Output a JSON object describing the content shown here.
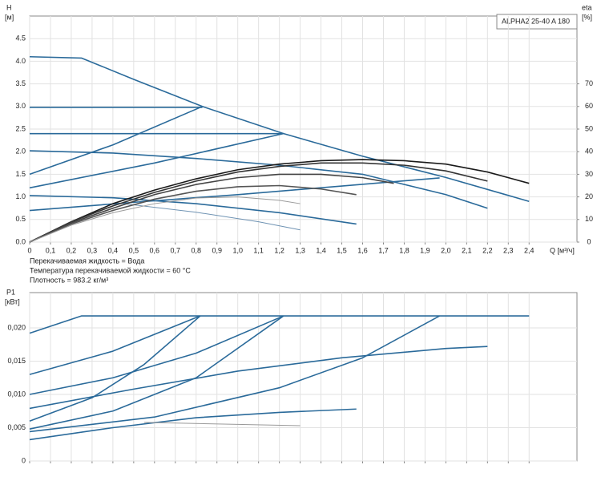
{
  "chart_data": [
    {
      "type": "line",
      "legend_box": "ALPHA2 25-40 A 180",
      "ylabel": "H",
      "yunit": "[м]",
      "y2label": "eta",
      "y2unit": "[%]",
      "xlabel": "Q [м³/ч]",
      "notes": [
        "Перекачиваемая жидкость = Вода",
        "Температура перекачиваемой жидкости = 60 °C",
        "Плотность = 983.2 кг/м³"
      ],
      "xlim": [
        0,
        2.63
      ],
      "xticks": [
        0,
        {
          "value": 0.1,
          "label": "0,1"
        },
        {
          "value": 0.2,
          "label": "0,2"
        },
        {
          "value": 0.3,
          "label": "0,3"
        },
        {
          "value": 0.4,
          "label": "0,4"
        },
        {
          "value": 0.5,
          "label": "0,5"
        },
        {
          "value": 0.6,
          "label": "0,6"
        },
        {
          "value": 0.7,
          "label": "0,7"
        },
        {
          "value": 0.8,
          "label": "0,8"
        },
        {
          "value": 0.9,
          "label": "0,9"
        },
        {
          "value": 1.0,
          "label": "1,0"
        },
        {
          "value": 1.1,
          "label": "1,1"
        },
        {
          "value": 1.2,
          "label": "1,2"
        },
        {
          "value": 1.3,
          "label": "1,3"
        },
        {
          "value": 1.4,
          "label": "1,4"
        },
        {
          "value": 1.5,
          "label": "1,5"
        },
        {
          "value": 1.6,
          "label": "1,6"
        },
        {
          "value": 1.7,
          "label": "1,7"
        },
        {
          "value": 1.8,
          "label": "1,8"
        },
        {
          "value": 1.9,
          "label": "1,9"
        },
        {
          "value": 2.0,
          "label": "2,0"
        },
        {
          "value": 2.1,
          "label": "2,1"
        },
        {
          "value": 2.2,
          "label": "2,2"
        },
        {
          "value": 2.3,
          "label": "2,3"
        },
        {
          "value": 2.4,
          "label": "2,4"
        }
      ],
      "ylim": [
        0,
        5
      ],
      "yticks": [
        {
          "value": 0,
          "label": "0.0"
        },
        {
          "value": 0.5,
          "label": "0.5"
        },
        {
          "value": 1,
          "label": "1.0"
        },
        {
          "value": 1.5,
          "label": "1.5"
        },
        {
          "value": 2,
          "label": "2.0"
        },
        {
          "value": 2.5,
          "label": "2.5"
        },
        {
          "value": 3,
          "label": "3.0"
        },
        {
          "value": 3.5,
          "label": "3.5"
        },
        {
          "value": 4,
          "label": "4.0"
        },
        {
          "value": 4.5,
          "label": "4.5"
        }
      ],
      "y2lim": [
        0,
        100
      ],
      "y2ticks": [
        0,
        10,
        20,
        30,
        40,
        50,
        60,
        70
      ],
      "grid": true,
      "series": [
        {
          "color": "#2a6a9a",
          "x": [
            0,
            0.25,
            0.5,
            0.83,
            1.22,
            1.6,
            2.0,
            2.4
          ],
          "values": [
            4.1,
            4.07,
            3.6,
            3.0,
            2.4,
            1.9,
            1.43,
            0.9
          ]
        },
        {
          "color": "#2a6a9a",
          "x": [
            0,
            0.83
          ],
          "values": [
            2.98,
            2.98
          ]
        },
        {
          "color": "#2a6a9a",
          "x": [
            0,
            1.22
          ],
          "values": [
            2.4,
            2.4
          ]
        },
        {
          "color": "#2a6a9a",
          "x": [
            0,
            0.4,
            0.83
          ],
          "values": [
            1.5,
            2.15,
            3.0
          ]
        },
        {
          "color": "#2a6a9a",
          "x": [
            0,
            0.6,
            1.22
          ],
          "values": [
            1.2,
            1.75,
            2.4
          ]
        },
        {
          "color": "#2a6a9a",
          "x": [
            0,
            0.5,
            1.0,
            1.5,
            1.97
          ],
          "values": [
            0.7,
            0.88,
            1.05,
            1.24,
            1.42
          ]
        },
        {
          "color": "#2a6a9a",
          "x": [
            0,
            0.4,
            0.8,
            1.2,
            1.6,
            2.0,
            2.2
          ],
          "values": [
            2.02,
            1.97,
            1.85,
            1.7,
            1.5,
            1.05,
            0.75
          ]
        },
        {
          "color": "#2a6a9a",
          "x": [
            0,
            0.4,
            0.8,
            1.2,
            1.57
          ],
          "values": [
            1.03,
            0.98,
            0.85,
            0.65,
            0.4
          ]
        },
        {
          "color": "#6f93b3",
          "x": [
            0.45,
            0.8,
            1.1,
            1.3
          ],
          "values": [
            0.85,
            0.66,
            0.45,
            0.27
          ]
        },
        {
          "color": "#1a1a1a",
          "axis": "y2",
          "x": [
            0,
            0.2,
            0.4,
            0.6,
            0.8,
            1.0,
            1.2,
            1.4,
            1.6,
            1.8,
            2.0,
            2.2,
            2.4
          ],
          "values": [
            0,
            9,
            17,
            23,
            28,
            32,
            34.5,
            36,
            36.5,
            36,
            34.5,
            31,
            26
          ]
        },
        {
          "color": "#333333",
          "axis": "y2",
          "x": [
            0,
            0.2,
            0.4,
            0.6,
            0.8,
            1.0,
            1.2,
            1.4,
            1.6,
            1.8,
            2.0,
            2.2
          ],
          "values": [
            0,
            9,
            16,
            22,
            27,
            31,
            33.5,
            35,
            35,
            34,
            31.5,
            27
          ]
        },
        {
          "color": "#444444",
          "axis": "y2",
          "x": [
            0,
            0.2,
            0.4,
            0.6,
            0.8,
            1.0,
            1.2,
            1.4,
            1.6,
            1.75
          ],
          "values": [
            0,
            8.5,
            15,
            21,
            25.5,
            28.5,
            30,
            30,
            28.5,
            26
          ]
        },
        {
          "color": "#555555",
          "axis": "y2",
          "x": [
            0,
            0.2,
            0.4,
            0.6,
            0.8,
            1.0,
            1.2,
            1.4,
            1.57
          ],
          "values": [
            0,
            8,
            14,
            19,
            22.5,
            24.5,
            25,
            23.5,
            21
          ]
        },
        {
          "color": "#999999",
          "axis": "y2",
          "x": [
            0,
            0.2,
            0.4,
            0.6,
            0.8,
            1.0,
            1.2,
            1.3
          ],
          "values": [
            0,
            7.5,
            13,
            17,
            19.5,
            20,
            18.5,
            17
          ]
        }
      ]
    },
    {
      "type": "line",
      "ylabel": "P1",
      "yunit": "[кВт]",
      "xlim": [
        0,
        2.63
      ],
      "xticks": [
        0,
        0.1,
        0.2,
        0.3,
        0.4,
        0.5,
        0.6,
        0.7,
        0.8,
        0.9,
        1.0,
        1.1,
        1.2,
        1.3,
        1.4,
        1.5,
        1.6,
        1.7,
        1.8,
        1.9,
        2.0,
        2.1,
        2.2,
        2.3,
        2.4
      ],
      "ylim": [
        0,
        0.0253
      ],
      "yticks": [
        0,
        {
          "value": 0.005,
          "label": "0,005"
        },
        {
          "value": 0.01,
          "label": "0,010"
        },
        {
          "value": 0.015,
          "label": "0,015"
        },
        {
          "value": 0.02,
          "label": "0,020"
        }
      ],
      "grid": true,
      "series": [
        {
          "color": "#2a6a9a",
          "x": [
            0,
            0.25,
            2.4
          ],
          "values": [
            0.0192,
            0.0218,
            0.0218
          ]
        },
        {
          "color": "#2a6a9a",
          "x": [
            0,
            0.4,
            0.82
          ],
          "values": [
            0.013,
            0.0165,
            0.0218
          ]
        },
        {
          "color": "#2a6a9a",
          "x": [
            0,
            0.4,
            0.8,
            1.22
          ],
          "values": [
            0.01,
            0.0125,
            0.0162,
            0.0218
          ]
        },
        {
          "color": "#2a6a9a",
          "x": [
            0,
            0.3,
            0.55,
            0.82
          ],
          "values": [
            0.006,
            0.0095,
            0.0145,
            0.0218
          ]
        },
        {
          "color": "#2a6a9a",
          "x": [
            0,
            0.5,
            1.0,
            1.5,
            2.0,
            2.2
          ],
          "values": [
            0.0079,
            0.0108,
            0.0135,
            0.0155,
            0.0169,
            0.0172
          ]
        },
        {
          "color": "#2a6a9a",
          "x": [
            0,
            0.4,
            0.8,
            1.22
          ],
          "values": [
            0.0048,
            0.0075,
            0.0125,
            0.0218
          ]
        },
        {
          "color": "#2a6a9a",
          "x": [
            0,
            0.6,
            1.2,
            1.6,
            1.97
          ],
          "values": [
            0.0044,
            0.0066,
            0.011,
            0.0155,
            0.0218
          ]
        },
        {
          "color": "#2a6a9a",
          "x": [
            0,
            0.4,
            0.8,
            1.2,
            1.57
          ],
          "values": [
            0.0032,
            0.005,
            0.0065,
            0.0073,
            0.0078
          ]
        },
        {
          "color": "#999999",
          "x": [
            0.55,
            1.0,
            1.3
          ],
          "values": [
            0.0058,
            0.0055,
            0.0053
          ]
        }
      ]
    }
  ]
}
